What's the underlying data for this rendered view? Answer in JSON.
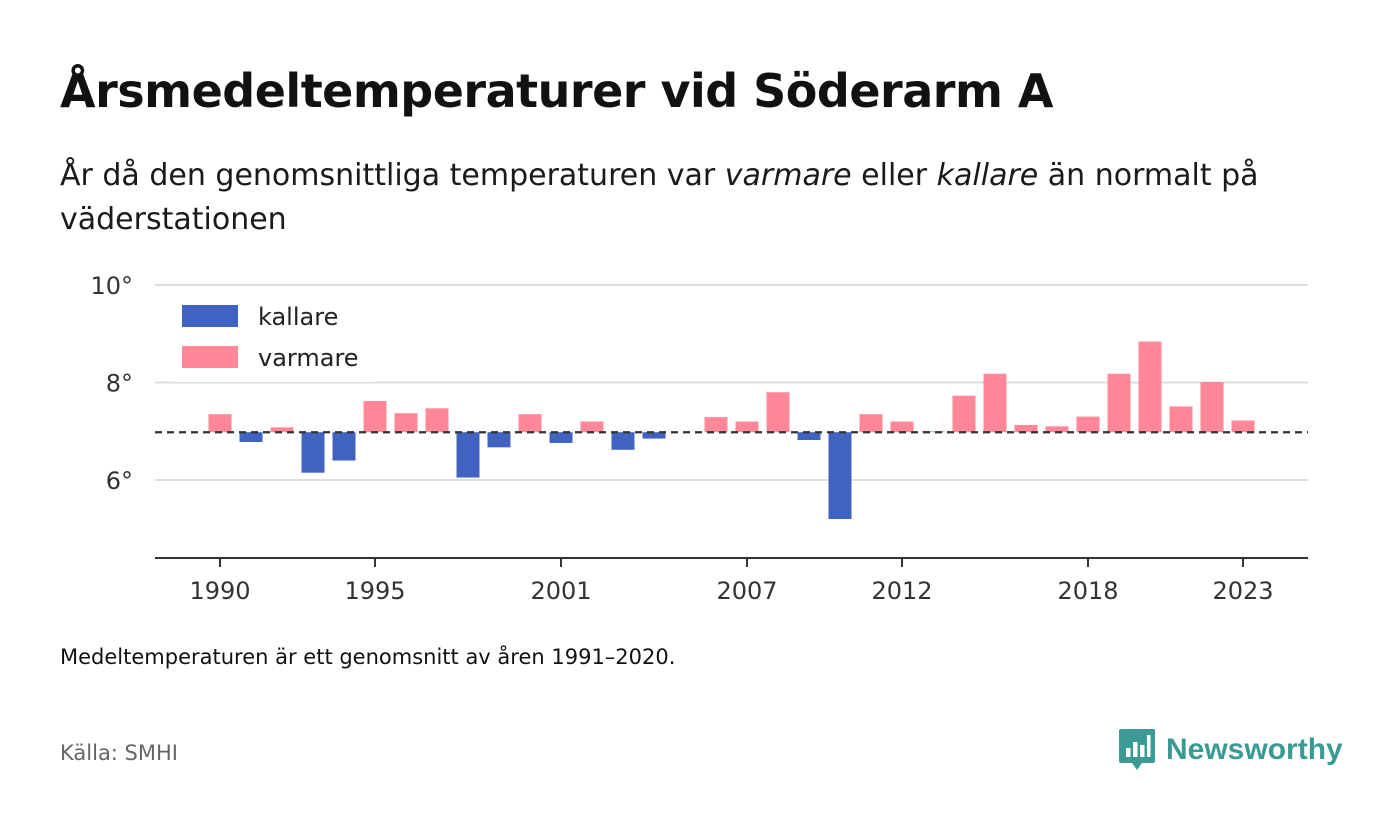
{
  "title": "Årsmedeltemperaturer vid Söderarm A",
  "subtitle": {
    "part1": "År då den genomsnittliga temperaturen var ",
    "warm_word": "varmare",
    "part2": " eller ",
    "cold_word": "kallare",
    "part3": " än normalt på väderstationen"
  },
  "note": "Medeltemperaturen är ett genomsnitt av åren 1991–2020.",
  "source": "Källa: SMHI",
  "brand": "Newsworthy",
  "colors": {
    "warm": "#ff8797",
    "cold": "#4063c1",
    "brand": "#3b9a93"
  },
  "chart_data": {
    "type": "bar",
    "baseline": 6.98,
    "ylim": [
      4.4,
      10
    ],
    "y_ticks": [
      "6°",
      "8°",
      "10°"
    ],
    "x_tick_labels": [
      "1990",
      "1995",
      "2001",
      "2007",
      "2012",
      "2018",
      "2023"
    ],
    "legend": {
      "cold": "kallare",
      "warm": "varmare",
      "position": "top-left"
    },
    "grid": true,
    "years": [
      1990,
      1991,
      1992,
      1993,
      1994,
      1995,
      1996,
      1997,
      1998,
      1999,
      2000,
      2001,
      2002,
      2003,
      2004,
      2005,
      2006,
      2007,
      2008,
      2009,
      2010,
      2011,
      2012,
      2013,
      2014,
      2015,
      2016,
      2017,
      2018,
      2019,
      2020,
      2021,
      2022,
      2023
    ],
    "values": [
      7.35,
      6.78,
      7.08,
      6.15,
      6.4,
      7.62,
      7.37,
      7.47,
      6.05,
      6.67,
      7.35,
      6.76,
      7.2,
      6.62,
      6.85,
      null,
      7.29,
      7.2,
      7.8,
      6.82,
      5.2,
      7.35,
      7.2,
      7.0,
      7.73,
      8.18,
      7.13,
      7.1,
      7.3,
      8.18,
      8.84,
      7.51,
      8.01,
      7.22
    ]
  }
}
